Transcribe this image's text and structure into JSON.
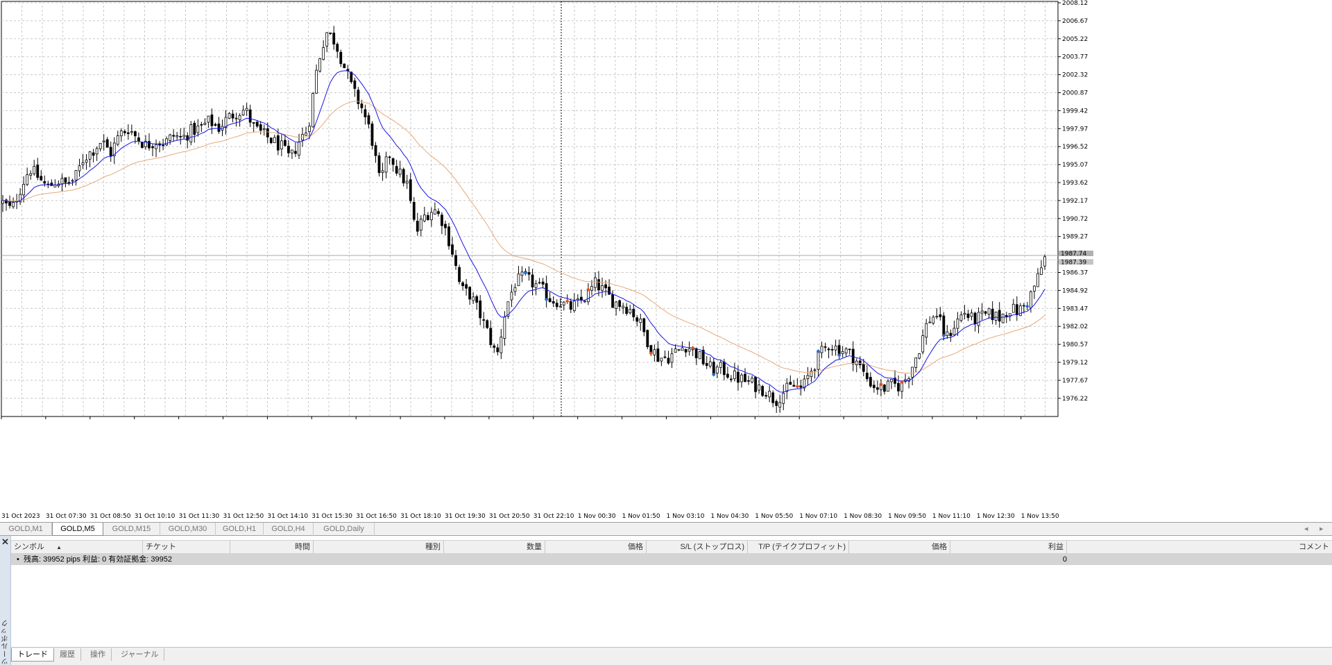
{
  "chart": {
    "symbol_tabs": [
      {
        "label": "GOLD,M1",
        "active": false
      },
      {
        "label": "GOLD,M5",
        "active": true
      },
      {
        "label": "GOLD,M15",
        "active": false
      },
      {
        "label": "GOLD,M30",
        "active": false
      },
      {
        "label": "GOLD,H1",
        "active": false
      },
      {
        "label": "GOLD,H4",
        "active": false
      },
      {
        "label": "GOLD,Daily",
        "active": false
      }
    ],
    "nav_left": "◂",
    "nav_right": "▸"
  },
  "toolbox": {
    "side_label": "ツールボックス",
    "close_symbol": "✕",
    "sort_arrow": "▲",
    "columns": [
      "シンボル",
      "チケット",
      "時間",
      "種別",
      "数量",
      "価格",
      "S/L (ストップロス)",
      "T/P (テイクプロフィット)",
      "価格",
      "利益",
      "コメント"
    ],
    "balance_text": "残高: 39952 pips   利益: 0   有効証拠金: 39952",
    "balance_profit": "0",
    "bullet": "•",
    "tabs": [
      {
        "label": "トレード",
        "active": true
      },
      {
        "label": "履歴",
        "active": false
      },
      {
        "label": "操作",
        "active": false
      },
      {
        "label": "ジャーナル",
        "active": false
      }
    ]
  },
  "chart_data": {
    "type": "candlestick",
    "symbol": "GOLD",
    "timeframe": "M5",
    "y_ticks": [
      "2008.12",
      "2006.67",
      "2005.22",
      "2003.77",
      "2002.32",
      "2000.87",
      "1999.42",
      "1997.97",
      "1996.52",
      "1995.07",
      "1993.62",
      "1992.17",
      "1990.72",
      "1989.27",
      "1986.37",
      "1984.92",
      "1983.47",
      "1982.02",
      "1980.57",
      "1979.12",
      "1977.67",
      "1976.22"
    ],
    "ylim": [
      1975.0,
      2008.12
    ],
    "x_ticks": [
      "31 Oct 2023",
      "31 Oct 07:30",
      "31 Oct 08:50",
      "31 Oct 10:10",
      "31 Oct 11:30",
      "31 Oct 12:50",
      "31 Oct 14:10",
      "31 Oct 15:30",
      "31 Oct 16:50",
      "31 Oct 18:10",
      "31 Oct 19:30",
      "31 Oct 20:50",
      "31 Oct 22:10",
      "1 Nov 00:30",
      "1 Nov 01:50",
      "1 Nov 03:10",
      "1 Nov 04:30",
      "1 Nov 05:50",
      "1 Nov 07:10",
      "1 Nov 08:30",
      "1 Nov 09:50",
      "1 Nov 11:10",
      "1 Nov 12:30",
      "1 Nov 13:50"
    ],
    "bid_label": "1987.74",
    "ask_label": "1987.39",
    "bid_price": 1987.74,
    "ask_price": 1987.39,
    "grid": true,
    "close_path": [
      1992.0,
      1991.4,
      1993.2,
      1994.8,
      1994.0,
      1993.2,
      1993.8,
      1993.5,
      1993.9,
      1995.6,
      1996.2,
      1997.0,
      1996.0,
      1997.5,
      1998.0,
      1997.2,
      1996.6,
      1997.0,
      1996.8,
      1997.4,
      1997.2,
      1997.8,
      1998.0,
      1998.6,
      1998.0,
      1998.8,
      1999.3,
      1999.5,
      1998.0,
      1997.5,
      1997.0,
      1996.5,
      1995.5,
      1997.0,
      1998.0,
      2003.0,
      2005.8,
      2005.0,
      2003.0,
      2001.0,
      1999.6,
      1997.5,
      1993.5,
      1996.0,
      1994.5,
      1993.5,
      1989.5,
      1991.0,
      1991.5,
      1990.5,
      1988.2,
      1985.0,
      1984.6,
      1983.2,
      1981.5,
      1979.5,
      1983.5,
      1985.5,
      1986.0,
      1985.5,
      1985.0,
      1984.2,
      1984.0,
      1983.5,
      1983.8,
      1984.5,
      1985.5,
      1984.8,
      1984.0,
      1983.8,
      1983.3,
      1982.2,
      1980.5,
      1979.5,
      1979.5,
      1980.0,
      1980.5,
      1980.0,
      1979.2,
      1978.5,
      1978.6,
      1978.1,
      1977.8,
      1977.5,
      1977.2,
      1976.8,
      1976.0,
      1976.8,
      1977.2,
      1977.0,
      1978.5,
      1979.8,
      1980.6,
      1980.2,
      1980.0,
      1979.3,
      1978.0,
      1977.2,
      1977.0,
      1977.3,
      1977.2,
      1978.4,
      1980.2,
      1982.5,
      1983.0,
      1981.0,
      1982.2,
      1983.2,
      1982.5,
      1982.8,
      1983.0,
      1982.7,
      1983.5,
      1983.2,
      1983.9,
      1985.5,
      1987.5
    ]
  }
}
